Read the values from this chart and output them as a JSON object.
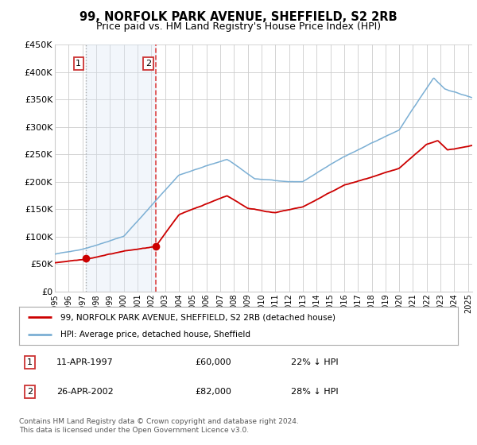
{
  "title": "99, NORFOLK PARK AVENUE, SHEFFIELD, S2 2RB",
  "subtitle": "Price paid vs. HM Land Registry's House Price Index (HPI)",
  "title_fontsize": 10.5,
  "subtitle_fontsize": 9,
  "ylim": [
    0,
    450000
  ],
  "yticks": [
    0,
    50000,
    100000,
    150000,
    200000,
    250000,
    300000,
    350000,
    400000,
    450000
  ],
  "ytick_labels": [
    "£0",
    "£50K",
    "£100K",
    "£150K",
    "£200K",
    "£250K",
    "£300K",
    "£350K",
    "£400K",
    "£450K"
  ],
  "xlim_start": 1995.0,
  "xlim_end": 2025.3,
  "purchases": [
    {
      "year": 1997.27,
      "price": 60000,
      "label": "1",
      "date": "11-APR-1997",
      "price_str": "£60,000",
      "hpi_diff": "22% ↓ HPI"
    },
    {
      "year": 2002.32,
      "price": 82000,
      "label": "2",
      "date": "26-APR-2002",
      "price_str": "£82,000",
      "hpi_diff": "28% ↓ HPI"
    }
  ],
  "line_red_color": "#cc0000",
  "line_blue_color": "#7bafd4",
  "shade_color": "#dae8f5",
  "vline1_color": "#aaaaaa",
  "vline2_color": "#dd4444",
  "grid_color": "#cccccc",
  "background_color": "#ffffff",
  "legend_entry1": "99, NORFOLK PARK AVENUE, SHEFFIELD, S2 2RB (detached house)",
  "legend_entry2": "HPI: Average price, detached house, Sheffield",
  "footnote": "Contains HM Land Registry data © Crown copyright and database right 2024.\nThis data is licensed under the Open Government Licence v3.0."
}
